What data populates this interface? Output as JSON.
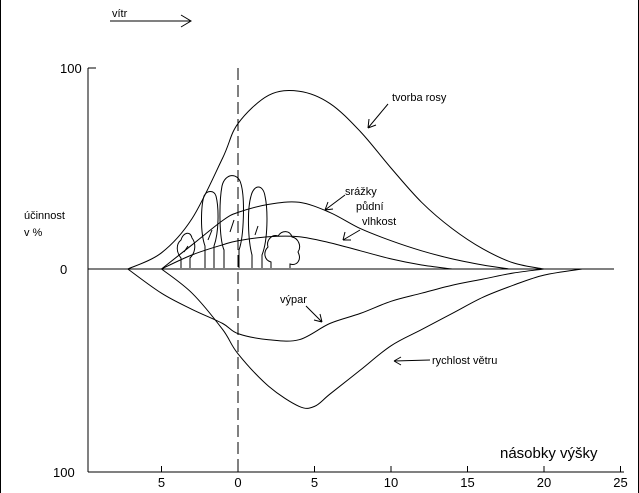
{
  "chart_data": {
    "type": "line",
    "wind_label": "vítr",
    "ylabel_line1": "účinnost",
    "ylabel_line2": "v %",
    "xlabel": "násobky výšky",
    "y_tick_labels": {
      "top": "100",
      "zero": "0",
      "bottom": "100"
    },
    "x_tick_labels": [
      "5",
      "0",
      "5",
      "10",
      "15",
      "20",
      "25"
    ],
    "x_tick_values": [
      -5,
      0,
      5,
      10,
      15,
      20,
      25
    ],
    "xlim": [
      -10,
      25
    ],
    "ylim": [
      -100,
      100
    ],
    "series": [
      {
        "name": "tvorba rosy",
        "x": [
          -7.2,
          -5,
          -3,
          -1,
          0,
          2,
          4,
          6,
          8,
          10,
          12,
          14,
          16,
          18,
          20
        ],
        "y": [
          0,
          8,
          25,
          55,
          72,
          86,
          88,
          82,
          68,
          50,
          33,
          20,
          10,
          3,
          0
        ]
      },
      {
        "name": "srážky",
        "x": [
          -5,
          -3,
          -1,
          0,
          2,
          4,
          6,
          8,
          10,
          12,
          14,
          16,
          17.7
        ],
        "y": [
          0,
          12,
          24,
          28,
          32,
          33,
          28,
          20,
          14,
          9,
          5,
          2,
          0
        ]
      },
      {
        "name": "půdní vlhkost",
        "x": [
          -5,
          -3,
          -1,
          0,
          2,
          4,
          6,
          8,
          10,
          12,
          14
        ],
        "y": [
          0,
          7,
          12,
          14,
          16,
          16,
          13,
          9,
          5,
          2,
          0
        ]
      },
      {
        "name": "výpar",
        "x": [
          -7.2,
          -5,
          -3,
          -1,
          0,
          2,
          4,
          6,
          8,
          10,
          12,
          14,
          16,
          18,
          20
        ],
        "y": [
          0,
          -12,
          -20,
          -27,
          -32,
          -35,
          -35,
          -27,
          -22,
          -16,
          -12,
          -8,
          -5,
          -2,
          0
        ]
      },
      {
        "name": "rychlost větru",
        "x": [
          -5,
          -3,
          -1,
          0,
          2,
          4,
          5,
          6,
          8,
          10,
          12,
          14,
          16,
          18,
          20,
          22.5
        ],
        "y": [
          0,
          -12,
          -30,
          -42,
          -58,
          -68,
          -68,
          -62,
          -50,
          -38,
          -30,
          -22,
          -14,
          -8,
          -3,
          0
        ]
      }
    ],
    "grid": false,
    "legend": "none"
  }
}
